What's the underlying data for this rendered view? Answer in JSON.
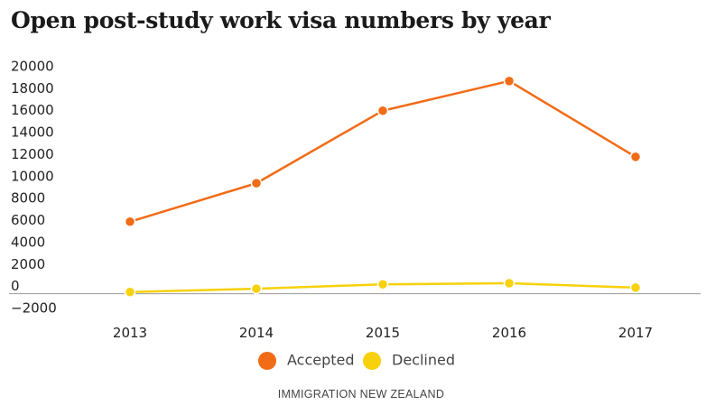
{
  "chart_data": {
    "type": "line",
    "title": "Open post-study work visa numbers by year",
    "x": [
      "2013",
      "2014",
      "2015",
      "2016",
      "2017"
    ],
    "series": [
      {
        "name": "Accepted",
        "color": "#f26b16",
        "values": [
          5900,
          9400,
          16000,
          18700,
          11800
        ]
      },
      {
        "name": "Declined",
        "color": "#f7d10b",
        "values": [
          -500,
          -200,
          200,
          300,
          -100
        ]
      }
    ],
    "yticks": [
      -2000,
      0,
      2000,
      4000,
      6000,
      8000,
      10000,
      12000,
      14000,
      16000,
      18000,
      20000
    ],
    "ylim": [
      -2000,
      20000
    ],
    "legend_position": "bottom-center",
    "grid": false,
    "source": "IMMIGRATION NEW ZEALAND"
  }
}
